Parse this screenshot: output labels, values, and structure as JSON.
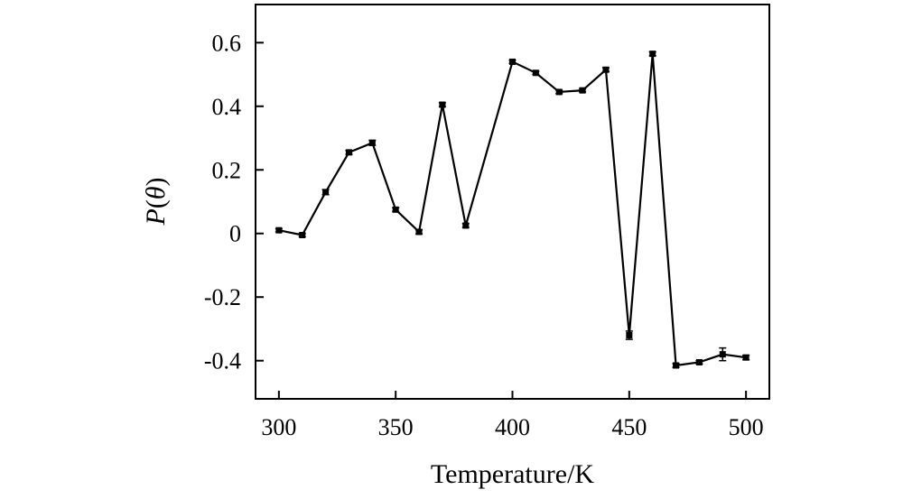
{
  "chart_data": {
    "type": "line",
    "title": "",
    "xlabel": "Temperature/K",
    "ylabel": "P(θ)",
    "ylabel_parts": {
      "symbol": "P",
      "open": "(",
      "arg": "θ",
      "close": ")"
    },
    "xlim": [
      290,
      510
    ],
    "ylim": [
      -0.52,
      0.72
    ],
    "xticks": [
      300,
      350,
      400,
      450,
      500
    ],
    "xtick_labels": [
      "300",
      "350",
      "400",
      "450",
      "500"
    ],
    "yticks": [
      -0.4,
      -0.2,
      0,
      0.2,
      0.4,
      0.6
    ],
    "ytick_labels": [
      "-0.4",
      "-0.2",
      "0",
      "0.2",
      "0.4",
      "0.6"
    ],
    "grid": false,
    "legend": "none",
    "marker": "square",
    "color": "#000000",
    "series": [
      {
        "x": [
          300,
          310,
          320,
          330,
          340,
          350,
          360,
          370,
          380,
          400,
          410,
          420,
          430,
          440,
          450,
          460,
          470,
          480,
          490,
          500
        ],
        "y": [
          0.01,
          -0.005,
          0.13,
          0.255,
          0.285,
          0.075,
          0.005,
          0.405,
          0.025,
          0.54,
          0.505,
          0.445,
          0.45,
          0.515,
          -0.32,
          0.565,
          -0.415,
          -0.405,
          -0.38,
          -0.39
        ],
        "error": [
          0.005,
          0.005,
          0.008,
          0.006,
          0.008,
          0.006,
          0.006,
          0.006,
          0.006,
          0.005,
          0.005,
          0.005,
          0.005,
          0.006,
          0.013,
          0.006,
          0.006,
          0.005,
          0.02,
          0.007
        ]
      }
    ]
  }
}
